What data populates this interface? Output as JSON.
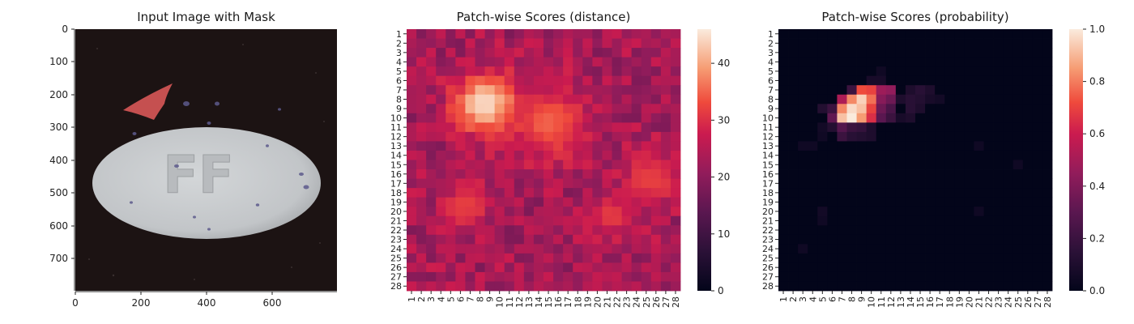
{
  "chart_data": [
    {
      "type": "image",
      "title": "Input Image with Mask",
      "xlim": [
        0,
        800
      ],
      "ylim": [
        800,
        0
      ],
      "xticks": [
        0,
        200,
        400,
        600
      ],
      "yticks": [
        0,
        100,
        200,
        300,
        400,
        500,
        600,
        700
      ],
      "image_text": "FF",
      "mask_color": "#f06060",
      "background_color": "#1c1313",
      "object_color": "#c6c9cc"
    },
    {
      "type": "heatmap",
      "title": "Patch-wise Scores (distance)",
      "rows": 28,
      "cols": 28,
      "row_labels": [
        "1",
        "2",
        "3",
        "4",
        "5",
        "6",
        "7",
        "8",
        "9",
        "10",
        "11",
        "12",
        "13",
        "14",
        "15",
        "16",
        "17",
        "18",
        "19",
        "20",
        "21",
        "22",
        "23",
        "24",
        "25",
        "26",
        "27",
        "28"
      ],
      "col_labels": [
        "1",
        "2",
        "3",
        "4",
        "5",
        "6",
        "7",
        "8",
        "9",
        "10",
        "11",
        "12",
        "13",
        "14",
        "15",
        "16",
        "17",
        "18",
        "19",
        "20",
        "21",
        "22",
        "23",
        "24",
        "25",
        "26",
        "27",
        "28"
      ],
      "colorbar": {
        "min": 0,
        "max": 46,
        "ticks": [
          0,
          10,
          20,
          30,
          40
        ]
      },
      "colormap": "rocket",
      "base_range": [
        18,
        28
      ],
      "hotspots": [
        {
          "row": 8.5,
          "col": 8.5,
          "value": 45,
          "spread": 2.2
        },
        {
          "row": 10.5,
          "col": 15,
          "value": 35,
          "spread": 2.6
        },
        {
          "row": 20.5,
          "col": 21.5,
          "value": 32,
          "spread": 1.4
        },
        {
          "row": 16.5,
          "col": 25.5,
          "value": 32,
          "spread": 2.0
        },
        {
          "row": 19.5,
          "col": 6.5,
          "value": 32,
          "spread": 1.6
        }
      ]
    },
    {
      "type": "heatmap",
      "title": "Patch-wise Scores (probability)",
      "rows": 28,
      "cols": 28,
      "row_labels": [
        "1",
        "2",
        "3",
        "4",
        "5",
        "6",
        "7",
        "8",
        "9",
        "10",
        "11",
        "12",
        "13",
        "14",
        "15",
        "16",
        "17",
        "18",
        "19",
        "20",
        "21",
        "22",
        "23",
        "24",
        "25",
        "26",
        "27",
        "28"
      ],
      "col_labels": [
        "1",
        "2",
        "3",
        "4",
        "5",
        "6",
        "7",
        "8",
        "9",
        "10",
        "11",
        "12",
        "13",
        "14",
        "15",
        "16",
        "17",
        "18",
        "19",
        "20",
        "21",
        "22",
        "23",
        "24",
        "25",
        "26",
        "27",
        "28"
      ],
      "colorbar": {
        "min": 0,
        "max": 1.0,
        "ticks": [
          "0.0",
          "0.2",
          "0.4",
          "0.6",
          "0.8",
          "1.0"
        ]
      },
      "colormap": "rocket",
      "cells": [
        {
          "row": 7,
          "col": 9,
          "value": 0.72
        },
        {
          "row": 7,
          "col": 10,
          "value": 0.7
        },
        {
          "row": 7,
          "col": 11,
          "value": 0.48
        },
        {
          "row": 7,
          "col": 12,
          "value": 0.45
        },
        {
          "row": 7,
          "col": 8,
          "value": 0.2
        },
        {
          "row": 8,
          "col": 7,
          "value": 0.52
        },
        {
          "row": 8,
          "col": 8,
          "value": 0.82
        },
        {
          "row": 8,
          "col": 9,
          "value": 0.95
        },
        {
          "row": 8,
          "col": 10,
          "value": 0.78
        },
        {
          "row": 8,
          "col": 11,
          "value": 0.42
        },
        {
          "row": 8,
          "col": 12,
          "value": 0.35
        },
        {
          "row": 9,
          "col": 6,
          "value": 0.2
        },
        {
          "row": 9,
          "col": 7,
          "value": 0.82
        },
        {
          "row": 9,
          "col": 8,
          "value": 0.97
        },
        {
          "row": 9,
          "col": 9,
          "value": 0.92
        },
        {
          "row": 9,
          "col": 10,
          "value": 0.7
        },
        {
          "row": 9,
          "col": 11,
          "value": 0.35
        },
        {
          "row": 9,
          "col": 12,
          "value": 0.25
        },
        {
          "row": 10,
          "col": 7,
          "value": 0.92
        },
        {
          "row": 10,
          "col": 8,
          "value": 1.0
        },
        {
          "row": 10,
          "col": 9,
          "value": 0.85
        },
        {
          "row": 10,
          "col": 10,
          "value": 0.65
        },
        {
          "row": 10,
          "col": 11,
          "value": 0.3
        },
        {
          "row": 10,
          "col": 12,
          "value": 0.2
        },
        {
          "row": 9,
          "col": 5,
          "value": 0.12
        },
        {
          "row": 10,
          "col": 6,
          "value": 0.32
        },
        {
          "row": 11,
          "col": 6,
          "value": 0.12
        },
        {
          "row": 11,
          "col": 7,
          "value": 0.28
        },
        {
          "row": 11,
          "col": 8,
          "value": 0.2
        },
        {
          "row": 11,
          "col": 9,
          "value": 0.18
        },
        {
          "row": 11,
          "col": 10,
          "value": 0.1
        },
        {
          "row": 12,
          "col": 7,
          "value": 0.2
        },
        {
          "row": 12,
          "col": 8,
          "value": 0.14
        },
        {
          "row": 12,
          "col": 9,
          "value": 0.12
        },
        {
          "row": 12,
          "col": 10,
          "value": 0.1
        },
        {
          "row": 8,
          "col": 13,
          "value": 0.1
        },
        {
          "row": 8,
          "col": 14,
          "value": 0.14
        },
        {
          "row": 8,
          "col": 15,
          "value": 0.12
        },
        {
          "row": 8,
          "col": 16,
          "value": 0.08
        },
        {
          "row": 7,
          "col": 14,
          "value": 0.1
        },
        {
          "row": 7,
          "col": 15,
          "value": 0.14
        },
        {
          "row": 7,
          "col": 16,
          "value": 0.1
        },
        {
          "row": 9,
          "col": 14,
          "value": 0.14
        },
        {
          "row": 9,
          "col": 15,
          "value": 0.1
        },
        {
          "row": 10,
          "col": 13,
          "value": 0.08
        },
        {
          "row": 10,
          "col": 14,
          "value": 0.1
        },
        {
          "row": 6,
          "col": 10,
          "value": 0.08
        },
        {
          "row": 6,
          "col": 11,
          "value": 0.08
        },
        {
          "row": 5,
          "col": 11,
          "value": 0.05
        },
        {
          "row": 8,
          "col": 17,
          "value": 0.06
        },
        {
          "row": 11,
          "col": 5,
          "value": 0.06
        },
        {
          "row": 12,
          "col": 5,
          "value": 0.05
        },
        {
          "row": 13,
          "col": 3,
          "value": 0.05
        },
        {
          "row": 13,
          "col": 4,
          "value": 0.05
        },
        {
          "row": 13,
          "col": 21,
          "value": 0.05
        },
        {
          "row": 15,
          "col": 25,
          "value": 0.05
        },
        {
          "row": 20,
          "col": 5,
          "value": 0.06
        },
        {
          "row": 21,
          "col": 5,
          "value": 0.05
        },
        {
          "row": 20,
          "col": 21,
          "value": 0.05
        },
        {
          "row": 24,
          "col": 3,
          "value": 0.05
        }
      ]
    }
  ]
}
